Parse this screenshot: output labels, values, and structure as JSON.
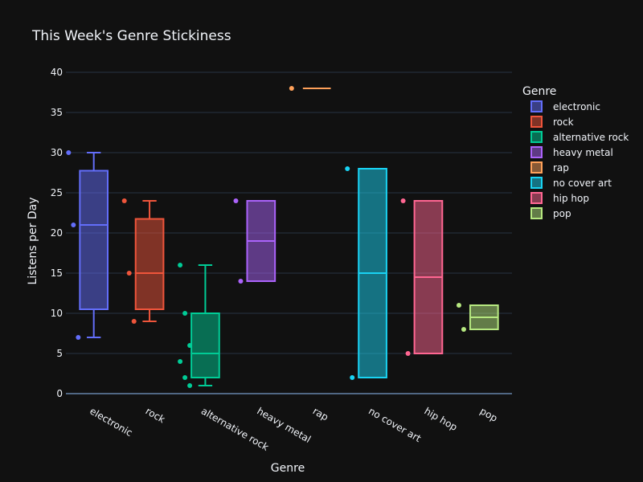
{
  "chart_data": {
    "type": "box",
    "title": "This Week's Genre Stickiness",
    "xlabel": "Genre",
    "ylabel": "Listens per Day",
    "ylim": [
      -1,
      41
    ],
    "yticks": [
      0,
      5,
      10,
      15,
      20,
      25,
      30,
      35,
      40
    ],
    "grid": true,
    "legend_title": "Genre",
    "legend_position": "top-right",
    "categories": [
      "electronic",
      "rock",
      "alternative rock",
      "heavy metal",
      "rap",
      "no cover art",
      "hip hop",
      "pop"
    ],
    "series": [
      {
        "name": "electronic",
        "color": "#636efa",
        "points": [
          30,
          21,
          7
        ],
        "q1": 10.5,
        "median": 21,
        "q3": 27.75,
        "lower_fence": 7,
        "upper_fence": 30
      },
      {
        "name": "rock",
        "color": "#ef553b",
        "points": [
          24,
          15,
          9
        ],
        "q1": 10.5,
        "median": 15,
        "q3": 21.75,
        "lower_fence": 9,
        "upper_fence": 24
      },
      {
        "name": "alternative rock",
        "color": "#00cc96",
        "points": [
          16,
          10,
          6,
          4,
          2,
          1
        ],
        "q1": 2,
        "median": 5,
        "q3": 10,
        "lower_fence": 1,
        "upper_fence": 16
      },
      {
        "name": "heavy metal",
        "color": "#ab63fa",
        "points": [
          24,
          14
        ],
        "q1": 14,
        "median": 19,
        "q3": 24,
        "lower_fence": 14,
        "upper_fence": 24
      },
      {
        "name": "rap",
        "color": "#ffa15a",
        "points": [
          38
        ],
        "q1": 38,
        "median": 38,
        "q3": 38,
        "lower_fence": 38,
        "upper_fence": 38
      },
      {
        "name": "no cover art",
        "color": "#19d3f3",
        "points": [
          28,
          2
        ],
        "q1": 2,
        "median": 15,
        "q3": 28,
        "lower_fence": 2,
        "upper_fence": 28
      },
      {
        "name": "hip hop",
        "color": "#ff6692",
        "points": [
          24,
          5
        ],
        "q1": 5,
        "median": 14.5,
        "q3": 24,
        "lower_fence": 5,
        "upper_fence": 24
      },
      {
        "name": "pop",
        "color": "#b6e880",
        "points": [
          11,
          8
        ],
        "q1": 8,
        "median": 9.5,
        "q3": 11,
        "lower_fence": 8,
        "upper_fence": 11
      }
    ]
  }
}
